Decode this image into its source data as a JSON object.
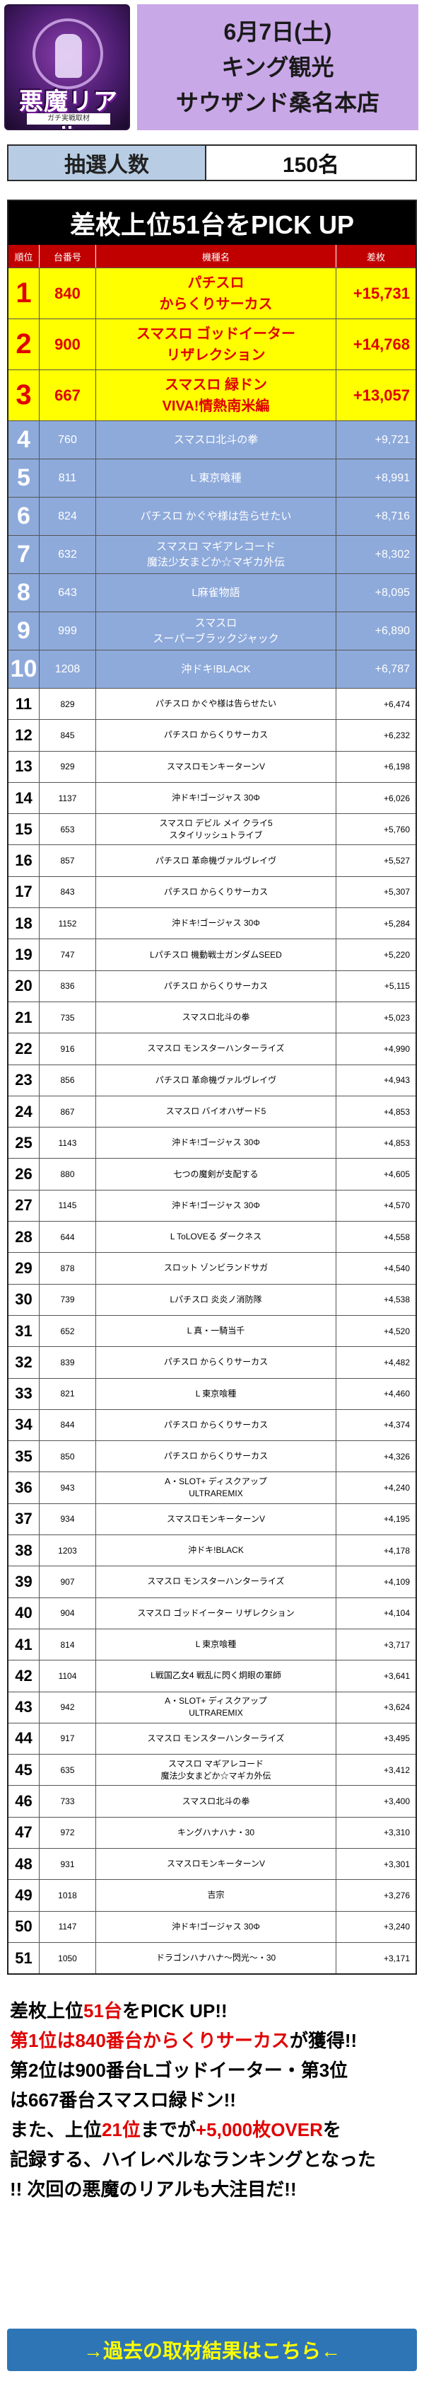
{
  "header": {
    "logo_title": "悪魔リアル",
    "logo_sub": "ガチ実戦取材",
    "date": "6月7日(土)",
    "hall_line1": "キング観光",
    "hall_line2": "サウザンド桑名本店"
  },
  "lottery": {
    "label": "抽選人数",
    "value": "150名"
  },
  "table": {
    "title": "差枚上位51台をPICK UP",
    "columns": [
      "順位",
      "台番号",
      "機種名",
      "差枚"
    ],
    "top": [
      {
        "rank": "1",
        "num": "840",
        "name1": "パチスロ",
        "name2": "からくりサーカス",
        "diff": "+15,731"
      },
      {
        "rank": "2",
        "num": "900",
        "name1": "スマスロ ゴッドイーター",
        "name2": "リザレクション",
        "diff": "+14,768"
      },
      {
        "rank": "3",
        "num": "667",
        "name1": "スマスロ 緑ドン",
        "name2": "VIVA!情熱南米編",
        "diff": "+13,057"
      }
    ],
    "mid": [
      {
        "rank": "4",
        "num": "760",
        "name1": "スマスロ北斗の拳",
        "name2": "",
        "diff": "+9,721"
      },
      {
        "rank": "5",
        "num": "811",
        "name1": "L 東京喰種",
        "name2": "",
        "diff": "+8,991"
      },
      {
        "rank": "6",
        "num": "824",
        "name1": "パチスロ かぐや様は告らせたい",
        "name2": "",
        "diff": "+8,716"
      },
      {
        "rank": "7",
        "num": "632",
        "name1": "スマスロ マギアレコード",
        "name2": "魔法少女まどか☆マギカ外伝",
        "diff": "+8,302"
      },
      {
        "rank": "8",
        "num": "643",
        "name1": "L麻雀物語",
        "name2": "",
        "diff": "+8,095"
      },
      {
        "rank": "9",
        "num": "999",
        "name1": "スマスロ",
        "name2": "スーパーブラックジャック",
        "diff": "+6,890"
      },
      {
        "rank": "10",
        "num": "1208",
        "name1": "沖ドキ!BLACK",
        "name2": "",
        "diff": "+6,787"
      }
    ],
    "low": [
      {
        "rank": "11",
        "num": "829",
        "name1": "パチスロ かぐや様は告らせたい",
        "name2": "",
        "diff": "+6,474"
      },
      {
        "rank": "12",
        "num": "845",
        "name1": "パチスロ からくりサーカス",
        "name2": "",
        "diff": "+6,232"
      },
      {
        "rank": "13",
        "num": "929",
        "name1": "スマスロモンキーターンV",
        "name2": "",
        "diff": "+6,198"
      },
      {
        "rank": "14",
        "num": "1137",
        "name1": "沖ドキ!ゴージャス 30Φ",
        "name2": "",
        "diff": "+6,026"
      },
      {
        "rank": "15",
        "num": "653",
        "name1": "スマスロ デビル メイ クライ5",
        "name2": "スタイリッシュトライブ",
        "diff": "+5,760"
      },
      {
        "rank": "16",
        "num": "857",
        "name1": "パチスロ 革命機ヴァルヴレイヴ",
        "name2": "",
        "diff": "+5,527"
      },
      {
        "rank": "17",
        "num": "843",
        "name1": "パチスロ からくりサーカス",
        "name2": "",
        "diff": "+5,307"
      },
      {
        "rank": "18",
        "num": "1152",
        "name1": "沖ドキ!ゴージャス 30Φ",
        "name2": "",
        "diff": "+5,284"
      },
      {
        "rank": "19",
        "num": "747",
        "name1": "Lパチスロ 機動戦士ガンダムSEED",
        "name2": "",
        "diff": "+5,220"
      },
      {
        "rank": "20",
        "num": "836",
        "name1": "パチスロ からくりサーカス",
        "name2": "",
        "diff": "+5,115"
      },
      {
        "rank": "21",
        "num": "735",
        "name1": "スマスロ北斗の拳",
        "name2": "",
        "diff": "+5,023"
      },
      {
        "rank": "22",
        "num": "916",
        "name1": "スマスロ モンスターハンターライズ",
        "name2": "",
        "diff": "+4,990"
      },
      {
        "rank": "23",
        "num": "856",
        "name1": "パチスロ 革命機ヴァルヴレイヴ",
        "name2": "",
        "diff": "+4,943"
      },
      {
        "rank": "24",
        "num": "867",
        "name1": "スマスロ バイオハザード5",
        "name2": "",
        "diff": "+4,853"
      },
      {
        "rank": "25",
        "num": "1143",
        "name1": "沖ドキ!ゴージャス 30Φ",
        "name2": "",
        "diff": "+4,853"
      },
      {
        "rank": "26",
        "num": "880",
        "name1": "七つの魔剣が支配する",
        "name2": "",
        "diff": "+4,605"
      },
      {
        "rank": "27",
        "num": "1145",
        "name1": "沖ドキ!ゴージャス 30Φ",
        "name2": "",
        "diff": "+4,570"
      },
      {
        "rank": "28",
        "num": "644",
        "name1": "L ToLOVEる ダークネス",
        "name2": "",
        "diff": "+4,558"
      },
      {
        "rank": "29",
        "num": "878",
        "name1": "スロット ゾンビランドサガ",
        "name2": "",
        "diff": "+4,540"
      },
      {
        "rank": "30",
        "num": "739",
        "name1": "Lパチスロ 炎炎ノ消防隊",
        "name2": "",
        "diff": "+4,538"
      },
      {
        "rank": "31",
        "num": "652",
        "name1": "L 真・一騎当千",
        "name2": "",
        "diff": "+4,520"
      },
      {
        "rank": "32",
        "num": "839",
        "name1": "パチスロ からくりサーカス",
        "name2": "",
        "diff": "+4,482"
      },
      {
        "rank": "33",
        "num": "821",
        "name1": "L 東京喰種",
        "name2": "",
        "diff": "+4,460"
      },
      {
        "rank": "34",
        "num": "844",
        "name1": "パチスロ からくりサーカス",
        "name2": "",
        "diff": "+4,374"
      },
      {
        "rank": "35",
        "num": "850",
        "name1": "パチスロ からくりサーカス",
        "name2": "",
        "diff": "+4,326"
      },
      {
        "rank": "36",
        "num": "943",
        "name1": "A・SLOT+ ディスクアップ",
        "name2": "ULTRAREMIX",
        "diff": "+4,240"
      },
      {
        "rank": "37",
        "num": "934",
        "name1": "スマスロモンキーターンV",
        "name2": "",
        "diff": "+4,195"
      },
      {
        "rank": "38",
        "num": "1203",
        "name1": "沖ドキ!BLACK",
        "name2": "",
        "diff": "+4,178"
      },
      {
        "rank": "39",
        "num": "907",
        "name1": "スマスロ モンスターハンターライズ",
        "name2": "",
        "diff": "+4,109"
      },
      {
        "rank": "40",
        "num": "904",
        "name1": "スマスロ ゴッドイーター リザレクション",
        "name2": "",
        "diff": "+4,104"
      },
      {
        "rank": "41",
        "num": "814",
        "name1": "L 東京喰種",
        "name2": "",
        "diff": "+3,717"
      },
      {
        "rank": "42",
        "num": "1104",
        "name1": "L戦国乙女4 戦乱に閃く炯眼の軍師",
        "name2": "",
        "diff": "+3,641"
      },
      {
        "rank": "43",
        "num": "942",
        "name1": "A・SLOT+ ディスクアップ",
        "name2": "ULTRAREMIX",
        "diff": "+3,624"
      },
      {
        "rank": "44",
        "num": "917",
        "name1": "スマスロ モンスターハンターライズ",
        "name2": "",
        "diff": "+3,495"
      },
      {
        "rank": "45",
        "num": "635",
        "name1": "スマスロ マギアレコード",
        "name2": "魔法少女まどか☆マギカ外伝",
        "diff": "+3,412"
      },
      {
        "rank": "46",
        "num": "733",
        "name1": "スマスロ北斗の拳",
        "name2": "",
        "diff": "+3,400"
      },
      {
        "rank": "47",
        "num": "972",
        "name1": "キングハナハナ・30",
        "name2": "",
        "diff": "+3,310"
      },
      {
        "rank": "48",
        "num": "931",
        "name1": "スマスロモンキーターンV",
        "name2": "",
        "diff": "+3,301"
      },
      {
        "rank": "49",
        "num": "1018",
        "name1": "吉宗",
        "name2": "",
        "diff": "+3,276"
      },
      {
        "rank": "50",
        "num": "1147",
        "name1": "沖ドキ!ゴージャス 30Φ",
        "name2": "",
        "diff": "+3,240"
      },
      {
        "rank": "51",
        "num": "1050",
        "name1": "ドラゴンハナハナ〜閃光〜・30",
        "name2": "",
        "diff": "+3,171"
      }
    ]
  },
  "summary": {
    "l1a": "差枚上位",
    "l1b": "51台",
    "l1c": "をPICK UP!!",
    "l2a": "第1位は",
    "l2b": "840番台からくりサーカス",
    "l2c": "が獲得!!",
    "l3": "第2位は900番台Lゴッドイーター・第3位",
    "l4": "は667番台スマスロ緑ドン!!",
    "l5a": "また、上位",
    "l5b": "21位",
    "l5c": "までが",
    "l5d": "+5,000枚OVER",
    "l5e": "を",
    "l6": "記録する、ハイレベルなランキングとなった",
    "l7": "!! 次回の悪魔のリアルも大注目だ!!"
  },
  "link": {
    "label": "→過去の取材結果はこちら←"
  }
}
